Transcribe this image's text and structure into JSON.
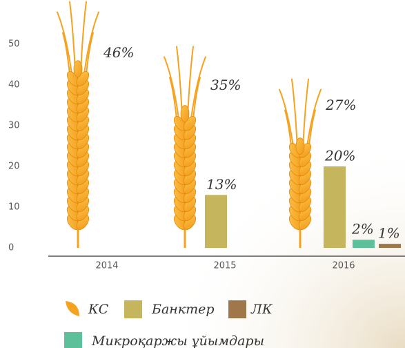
{
  "chart_data": {
    "type": "bar",
    "categories": [
      "2014",
      "2015",
      "2016"
    ],
    "ylim": [
      0,
      60
    ],
    "yticks": [
      0,
      10,
      20,
      30,
      40,
      50
    ],
    "series": [
      {
        "name": "КС",
        "color": "#f5a21e",
        "values": [
          46,
          35,
          27
        ],
        "value_labels": [
          "46%",
          "35%",
          "27%"
        ]
      },
      {
        "name": "Банктер",
        "color": "#c5b55d",
        "values": [
          null,
          13,
          20
        ],
        "value_labels": [
          null,
          "13%",
          "20%"
        ]
      },
      {
        "name": "ЛК",
        "color": "#a0774a",
        "values": [
          null,
          null,
          1
        ],
        "value_labels": [
          null,
          null,
          "1%"
        ]
      },
      {
        "name": "Микроқаржы ұйымдары",
        "color": "#5cc09b",
        "values": [
          null,
          null,
          2
        ],
        "value_labels": [
          null,
          null,
          "2%"
        ]
      }
    ]
  }
}
